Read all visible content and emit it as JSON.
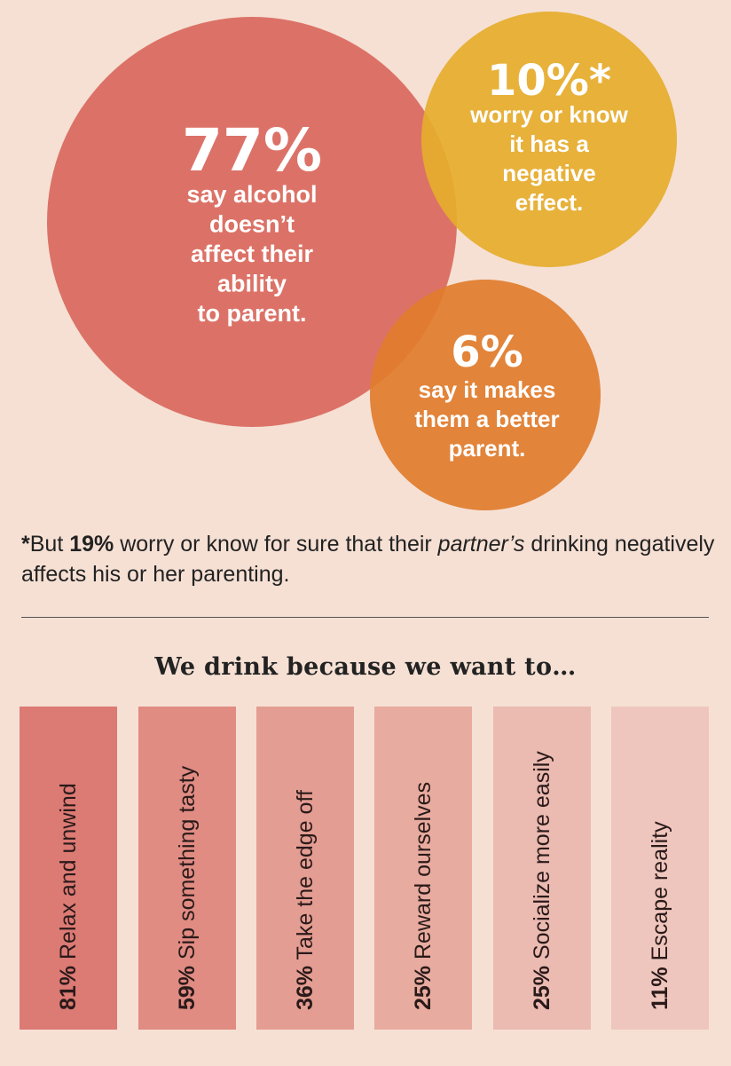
{
  "chart_data": [
    {
      "type": "bubble",
      "bubbles": [
        {
          "value": "77%",
          "label_lines": [
            "say alcohol",
            "doesn’t",
            "affect their",
            "ability",
            "to parent."
          ],
          "color": "#d9695f"
        },
        {
          "value": "10%*",
          "label_lines": [
            "worry or know",
            "it has a",
            "negative",
            "effect."
          ],
          "color": "#e5ad2c"
        },
        {
          "value": "6%",
          "label_lines": [
            "say it makes",
            "them a better",
            "parent."
          ],
          "color": "#e07c2c"
        }
      ]
    },
    {
      "type": "bar",
      "title": "We drink because we want to…",
      "categories": [
        "Relax and unwind",
        "Sip something tasty",
        "Take the edge off",
        "Reward ourselves",
        "Socialize more easily",
        "Escape reality"
      ],
      "values": [
        81,
        59,
        36,
        25,
        25,
        11
      ],
      "value_labels": [
        "81%",
        "59%",
        "36%",
        "25%",
        "25%",
        "11%"
      ],
      "colors": [
        "#dc7a74",
        "#e08c83",
        "#e49d92",
        "#e8ab9f",
        "#ebbab0",
        "#efc6bd"
      ]
    }
  ],
  "footnote": {
    "star": "*",
    "part1": "But ",
    "bold": "19%",
    "part2": " worry or know for sure that their ",
    "italic": "partner’s",
    "part3": " drinking negatively affects his or her parenting."
  },
  "colors": {
    "background": "#f6e0d4",
    "bubble_text": "#ffffff"
  }
}
